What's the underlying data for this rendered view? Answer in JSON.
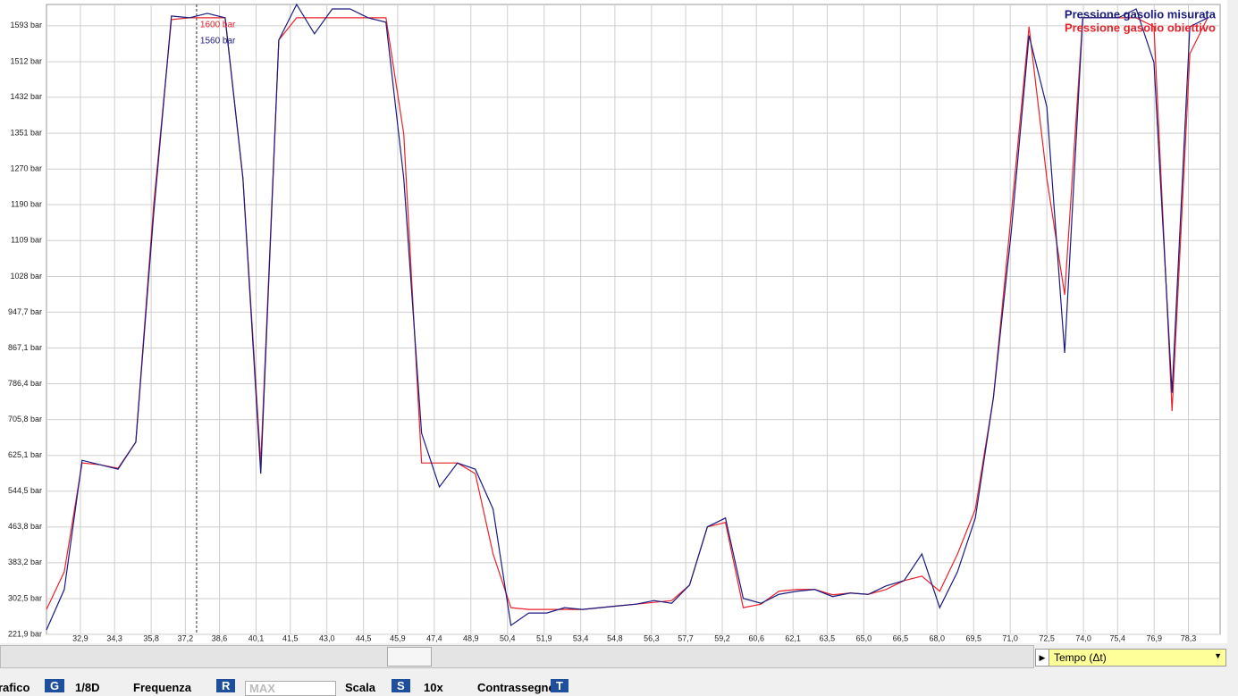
{
  "chart_data": {
    "type": "line",
    "legend_position": "upper right",
    "grid": true,
    "xlim": [
      31.51,
      79.6
    ],
    "ylim": [
      221.9,
      1641
    ],
    "xticks": [
      {
        "value": 32.9,
        "label": "32,9"
      },
      {
        "value": 34.3,
        "label": "34,3"
      },
      {
        "value": 35.8,
        "label": "35,8"
      },
      {
        "value": 37.2,
        "label": "37,2"
      },
      {
        "value": 38.6,
        "label": "38,6"
      },
      {
        "value": 40.1,
        "label": "40,1"
      },
      {
        "value": 41.5,
        "label": "41,5"
      },
      {
        "value": 43.0,
        "label": "43,0"
      },
      {
        "value": 44.5,
        "label": "44,5"
      },
      {
        "value": 45.9,
        "label": "45,9"
      },
      {
        "value": 47.4,
        "label": "47,4"
      },
      {
        "value": 48.9,
        "label": "48,9"
      },
      {
        "value": 50.4,
        "label": "50,4"
      },
      {
        "value": 51.9,
        "label": "51,9"
      },
      {
        "value": 53.4,
        "label": "53,4"
      },
      {
        "value": 54.8,
        "label": "54,8"
      },
      {
        "value": 56.3,
        "label": "56,3"
      },
      {
        "value": 57.7,
        "label": "57,7"
      },
      {
        "value": 59.2,
        "label": "59,2"
      },
      {
        "value": 60.6,
        "label": "60,6"
      },
      {
        "value": 62.1,
        "label": "62,1"
      },
      {
        "value": 63.5,
        "label": "63,5"
      },
      {
        "value": 65.0,
        "label": "65,0"
      },
      {
        "value": 66.5,
        "label": "66,5"
      },
      {
        "value": 68.0,
        "label": "68,0"
      },
      {
        "value": 69.5,
        "label": "69,5"
      },
      {
        "value": 71.0,
        "label": "71,0"
      },
      {
        "value": 72.5,
        "label": "72,5"
      },
      {
        "value": 74.0,
        "label": "74,0"
      },
      {
        "value": 75.4,
        "label": "75,4"
      },
      {
        "value": 76.9,
        "label": "76,9"
      },
      {
        "value": 78.3,
        "label": "78,3"
      }
    ],
    "yticks": [
      {
        "value": 221.9,
        "label": "221,9 bar"
      },
      {
        "value": 302.5,
        "label": "302,5 bar"
      },
      {
        "value": 383.2,
        "label": "383,2 bar"
      },
      {
        "value": 463.8,
        "label": "463,8 bar"
      },
      {
        "value": 544.5,
        "label": "544,5 bar"
      },
      {
        "value": 625.1,
        "label": "625,1 bar"
      },
      {
        "value": 705.8,
        "label": "705,8 bar"
      },
      {
        "value": 786.4,
        "label": "786,4 bar"
      },
      {
        "value": 867.1,
        "label": "867,1 bar"
      },
      {
        "value": 947.7,
        "label": "947,7 bar"
      },
      {
        "value": 1028,
        "label": "1028 bar"
      },
      {
        "value": 1109,
        "label": "1109 bar"
      },
      {
        "value": 1190,
        "label": "1190 bar"
      },
      {
        "value": 1270,
        "label": "1270 bar"
      },
      {
        "value": 1351,
        "label": "1351 bar"
      },
      {
        "value": 1432,
        "label": "1432 bar"
      },
      {
        "value": 1512,
        "label": "1512 bar"
      },
      {
        "value": 1593,
        "label": "1593 bar"
      }
    ],
    "x": [
      31.51,
      32.24,
      32.97,
      33.71,
      34.44,
      35.17,
      35.9,
      36.63,
      37.37,
      38.1,
      38.83,
      39.56,
      40.29,
      41.03,
      41.76,
      42.49,
      43.22,
      43.95,
      44.69,
      45.42,
      46.15,
      46.88,
      47.61,
      48.35,
      49.08,
      49.81,
      50.54,
      51.27,
      52.01,
      52.74,
      53.47,
      54.2,
      54.93,
      55.67,
      56.4,
      57.13,
      57.86,
      58.59,
      59.33,
      60.06,
      60.79,
      61.52,
      62.25,
      62.99,
      63.72,
      64.45,
      65.18,
      65.91,
      66.65,
      67.38,
      68.11,
      68.84,
      69.57,
      70.31,
      71.04,
      71.77,
      72.5,
      73.23,
      73.97,
      74.7,
      75.43,
      76.16,
      76.89,
      77.63,
      78.36,
      79.09
    ],
    "series": [
      {
        "name": "Pressione gasolio misurata",
        "color": "#1a1a80",
        "values": [
          232,
          323,
          614,
          604,
          594,
          655,
          1168,
          1615,
          1611,
          1621,
          1611,
          1249,
          584,
          1561,
          1641,
          1575,
          1631,
          1631,
          1611,
          1601,
          1249,
          675,
          554,
          608,
          594,
          504,
          242,
          270,
          270,
          282,
          278,
          282,
          286,
          290,
          298,
          292,
          333,
          464,
          484,
          303,
          292,
          312,
          319,
          323,
          307,
          315,
          312,
          331,
          343,
          403,
          282,
          363,
          484,
          755,
          1128,
          1571,
          1410,
          856,
          1611,
          1611,
          1611,
          1631,
          1510,
          766,
          1591,
          1611
        ]
      },
      {
        "name": "Pressione gasolio obiettivo",
        "color": "#e8222a",
        "values": [
          278,
          363,
          608,
          604,
          596,
          655,
          1188,
          1607,
          1611,
          1611,
          1611,
          1249,
          608,
          1561,
          1611,
          1611,
          1611,
          1611,
          1611,
          1611,
          1349,
          608,
          608,
          608,
          584,
          403,
          282,
          278,
          278,
          278,
          278,
          282,
          286,
          290,
          294,
          298,
          333,
          464,
          474,
          282,
          290,
          319,
          323,
          323,
          311,
          315,
          312,
          323,
          343,
          353,
          319,
          403,
          504,
          755,
          1168,
          1591,
          1249,
          987,
          1611,
          1611,
          1611,
          1611,
          1591,
          725,
          1530,
          1611
        ]
      }
    ],
    "cursor": {
      "x": 37.66,
      "labels": [
        "1600 bar",
        "1560 bar"
      ]
    }
  },
  "controls": {
    "x_axis_select": "Tempo (Δt)",
    "toolbar": [
      "rafico",
      "G",
      "1/8D",
      "Frequenza",
      "R",
      "MAX",
      "Scala",
      "S",
      "10x",
      "Contrassegno",
      "T"
    ]
  }
}
